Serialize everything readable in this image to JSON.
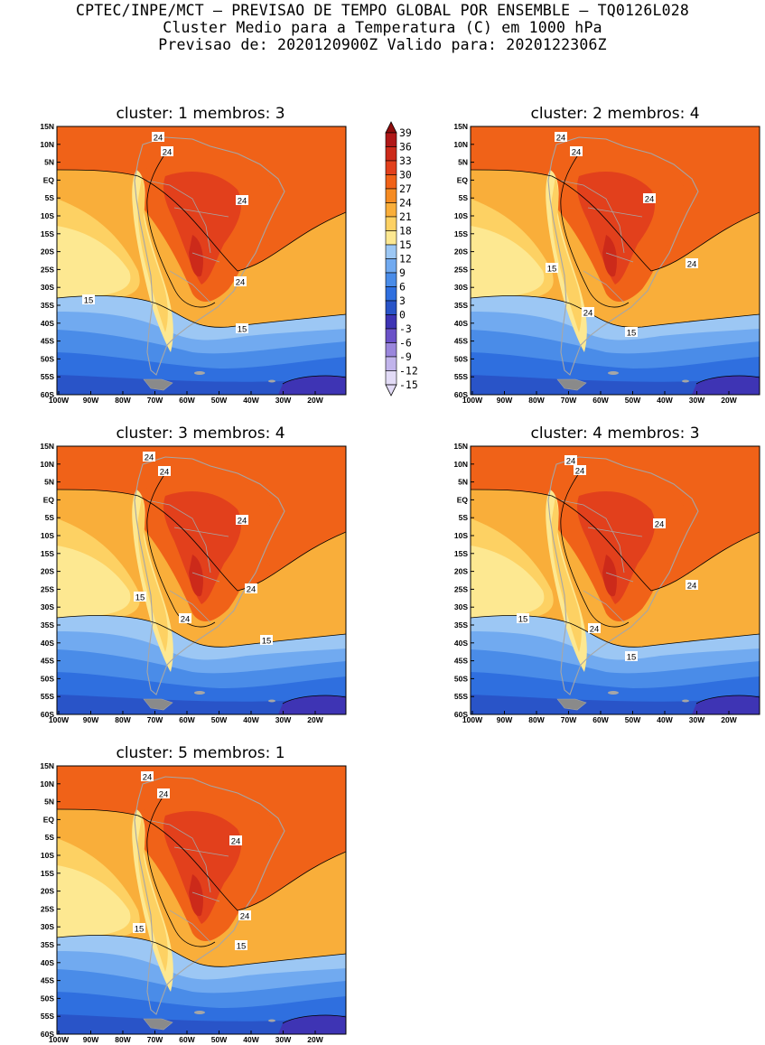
{
  "header": {
    "line1": "CPTEC/INPE/MCT – PREVISAO DE TEMPO GLOBAL POR ENSEMBLE – TQ0126L028",
    "line2": "Cluster Medio para a Temperatura (C) em 1000 hPa",
    "line3": "Previsao de: 2020120900Z    Valido para: 2020122306Z"
  },
  "axes": {
    "lat_labels": [
      "15N",
      "10N",
      "5N",
      "EQ",
      "5S",
      "10S",
      "15S",
      "20S",
      "25S",
      "30S",
      "35S",
      "40S",
      "45S",
      "50S",
      "55S",
      "60S"
    ],
    "lon_labels": [
      "100W",
      "90W",
      "80W",
      "70W",
      "60W",
      "50W",
      "40W",
      "30W",
      "20W"
    ]
  },
  "colorbar": {
    "levels": [
      "39",
      "36",
      "33",
      "30",
      "27",
      "24",
      "21",
      "18",
      "15",
      "12",
      "9",
      "6",
      "3",
      "0",
      "-3",
      "-6",
      "-9",
      "-12",
      "-15"
    ],
    "colors": [
      "#8e0d0d",
      "#b01818",
      "#cc2a1a",
      "#e2401c",
      "#f06218",
      "#f58b22",
      "#f9ae3a",
      "#fdd163",
      "#fde891",
      "#9cc7f4",
      "#71aaf0",
      "#4a8ce8",
      "#2f6fdf",
      "#2954c8",
      "#3e34b4",
      "#6b52c8",
      "#9a86dc",
      "#c1b4eb",
      "#e2dbf6"
    ]
  },
  "panels": [
    {
      "title": "cluster: 1   membros: 3",
      "labels": [
        "24",
        "24",
        "24",
        "24",
        "15",
        "15"
      ]
    },
    {
      "title": "cluster: 2   membros: 4",
      "labels": [
        "24",
        "24",
        "24",
        "24",
        "24",
        "15",
        "15"
      ]
    },
    {
      "title": "cluster: 3   membros: 4",
      "labels": [
        "24",
        "24",
        "24",
        "24",
        "24",
        "15",
        "15"
      ]
    },
    {
      "title": "cluster: 4   membros: 3",
      "labels": [
        "24",
        "24",
        "24",
        "24",
        "24",
        "15",
        "15"
      ]
    },
    {
      "title": "cluster: 5   membros: 1",
      "labels": [
        "24",
        "24",
        "24",
        "24",
        "15",
        "15"
      ]
    }
  ]
}
